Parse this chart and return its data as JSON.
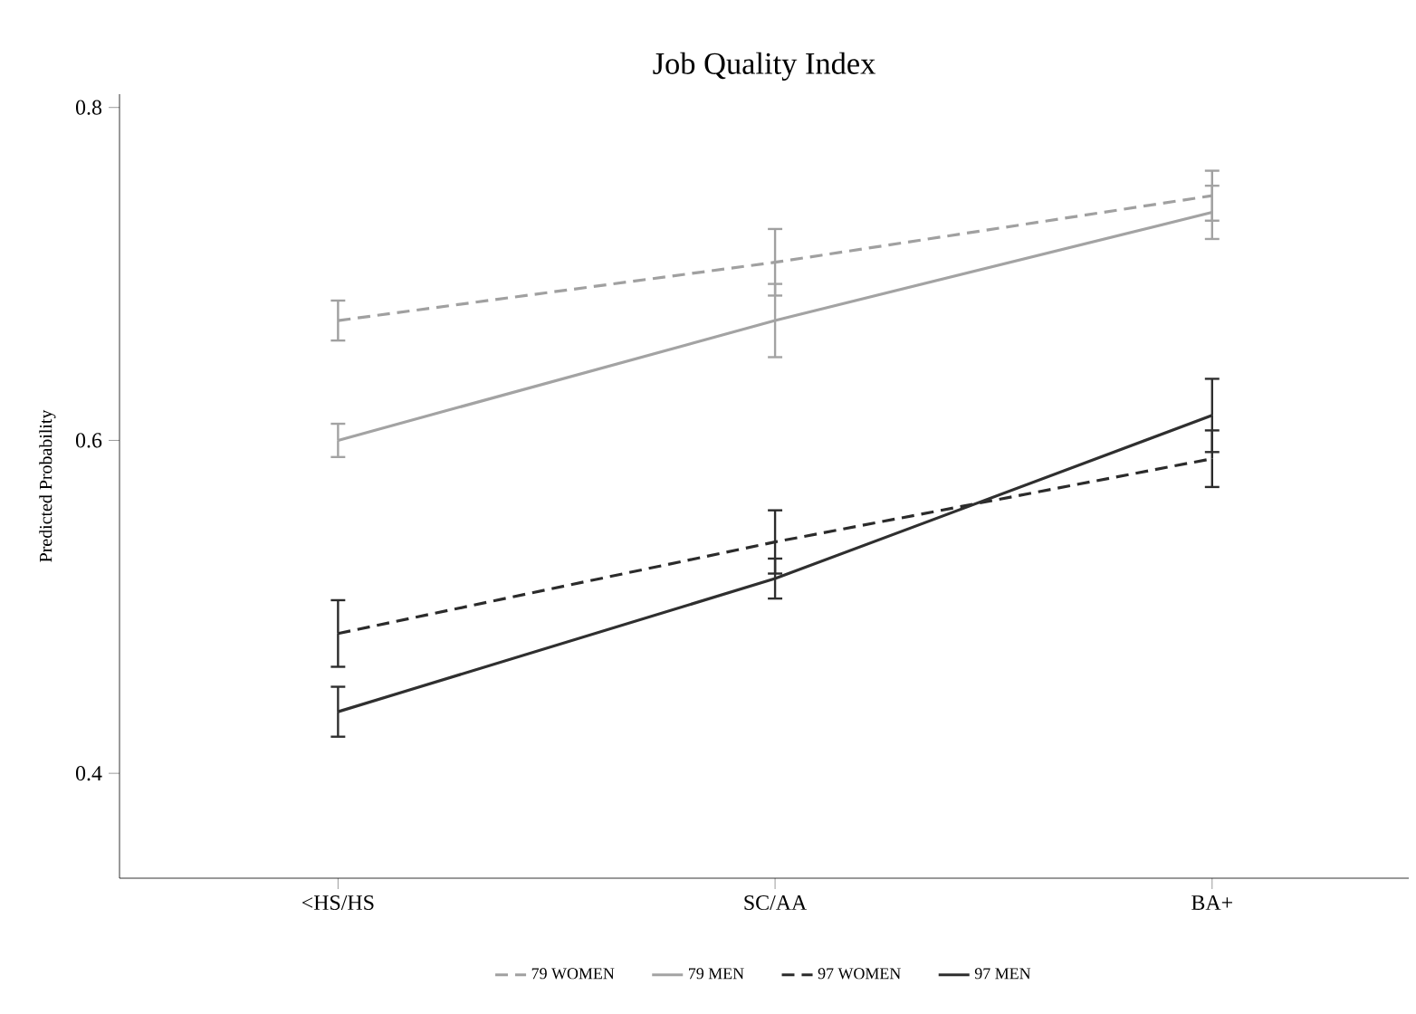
{
  "chart_data": {
    "type": "line",
    "title": "Job Quality Index",
    "ylabel": "Predicted Probability",
    "categories": [
      "<HS/HS",
      "SC/AA",
      "BA+"
    ],
    "series": [
      {
        "name": "79 WOMEN",
        "color": "#a0a0a0",
        "line_style": "dashed",
        "values": [
          0.672,
          0.707,
          0.747
        ],
        "errors": [
          0.012,
          0.02,
          0.015
        ]
      },
      {
        "name": "79 MEN",
        "color": "#a3a3a3",
        "line_style": "solid",
        "values": [
          0.6,
          0.672,
          0.737
        ],
        "errors": [
          0.01,
          0.022,
          0.016
        ]
      },
      {
        "name": "97 WOMEN",
        "color": "#2b2b2b",
        "line_style": "dashed",
        "values": [
          0.484,
          0.539,
          0.589
        ],
        "errors": [
          0.02,
          0.019,
          0.017
        ]
      },
      {
        "name": "97 MEN",
        "color": "#2f2f2f",
        "line_style": "solid",
        "values": [
          0.437,
          0.517,
          0.615
        ],
        "errors": [
          0.015,
          0.012,
          0.022
        ]
      }
    ],
    "ylim": [
      0.337,
      0.808
    ],
    "yticks": [
      0.4,
      0.6,
      0.8
    ],
    "grid": false,
    "legend": "bottom",
    "marker": "none"
  }
}
